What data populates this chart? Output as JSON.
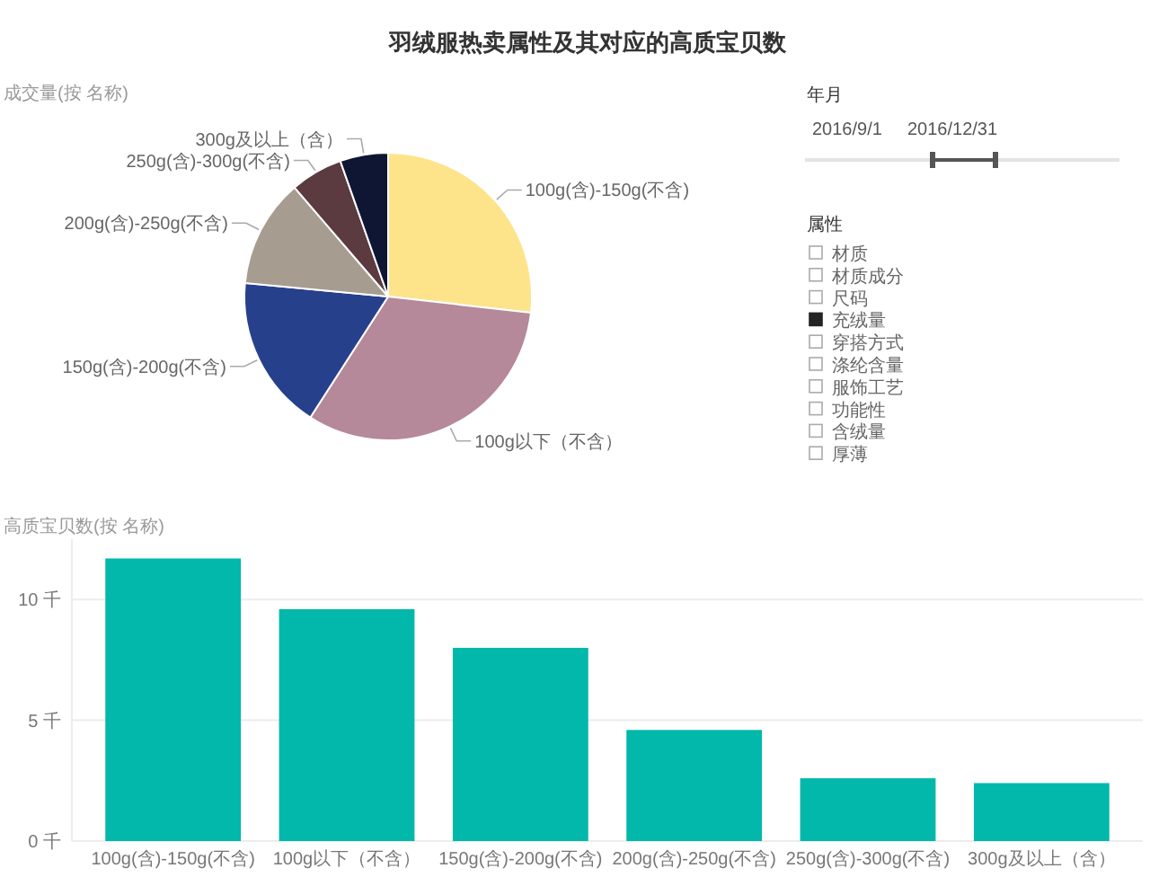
{
  "chart_data": [
    {
      "type": "pie",
      "title": "羽绒服热卖属性及其对应的高质宝贝数",
      "subtitle": "成交量(按 名称)",
      "categories": [
        "100g(含)-150g(不含)",
        "100g以下（不含）",
        "150g(含)-200g(不含)",
        "200g(含)-250g(不含)",
        "250g(含)-300g(不含)",
        "300g及以上（含）"
      ],
      "values": [
        26.8,
        32.3,
        17.4,
        12.2,
        5.9,
        5.4
      ],
      "colors": [
        "#fde48b",
        "#b5889a",
        "#26408c",
        "#a79c90",
        "#5b3b40",
        "#0e1633"
      ]
    },
    {
      "type": "other",
      "title": "年月",
      "annotations": [
        "2016/9/1",
        "2016/12/31"
      ]
    },
    {
      "type": "other",
      "title": "属性",
      "categories": [
        "材质",
        "材质成分",
        "尺码",
        "充绒量",
        "穿搭方式",
        "涤纶含量",
        "服饰工艺",
        "功能性",
        "含绒量",
        "厚薄"
      ],
      "colors": [
        "#ffffff",
        "#ffffff",
        "#ffffff",
        "#252423",
        "#ffffff",
        "#ffffff",
        "#ffffff",
        "#ffffff",
        "#ffffff",
        "#ffffff"
      ]
    },
    {
      "type": "bar",
      "title": "高质宝贝数(按 名称)",
      "categories": [
        "100g(含)-150g(不含)",
        "100g以下（不含）",
        "150g(含)-200g(不含)",
        "200g(含)-250g(不含)",
        "250g(含)-300g(不含)",
        "300g及以上（含）"
      ],
      "values": [
        11.7,
        9.6,
        8.0,
        4.6,
        2.6,
        2.4
      ],
      "color": "#01b8aa",
      "ylim": [
        0,
        12.5
      ],
      "yticks": [
        {
          "value": 0,
          "label": "0 千"
        },
        {
          "value": 5,
          "label": "5 千"
        },
        {
          "value": 10,
          "label": "10 千"
        }
      ],
      "grid": "y"
    }
  ]
}
